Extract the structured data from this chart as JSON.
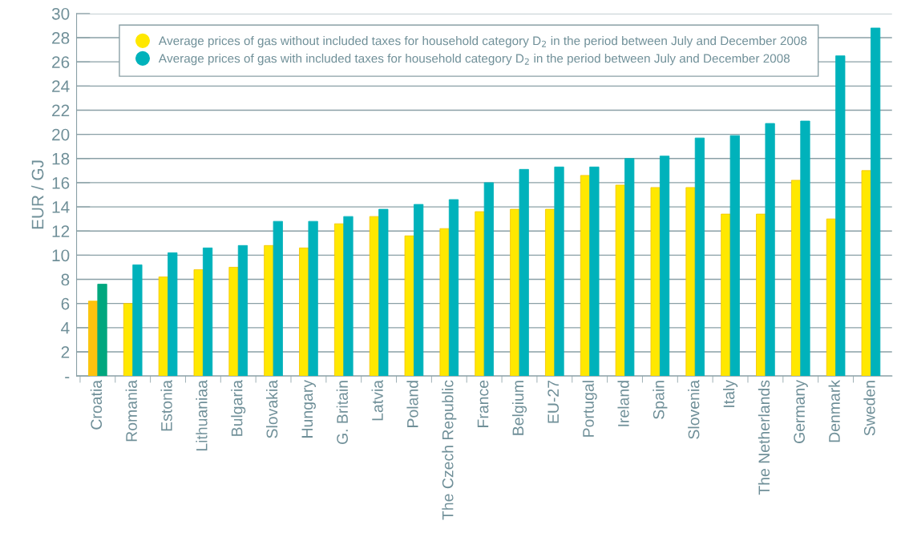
{
  "chart_data": {
    "type": "bar",
    "ylabel": "EUR / GJ",
    "categories": [
      "Croatia",
      "Romania",
      "Estonia",
      "Lithuaniaa",
      "Bulgaria",
      "Slovakia",
      "Hungary",
      "G. Britain",
      "Latvia",
      "Poland",
      "The Czech Republic",
      "France",
      "Belgium",
      "EU-27",
      "Portugal",
      "Ireland",
      "Spain",
      "Slovenia",
      "Italy",
      "The Netherlands",
      "Germany",
      "Denmark",
      "Sweden"
    ],
    "series": [
      {
        "name": "Average prices of gas without included taxes for household category D$_{2}$ in the period between July and December 2008",
        "color": "#ffe800",
        "colors": [
          "#ffc20e",
          "#ffe800",
          "#ffe800",
          "#ffe800",
          "#ffe800",
          "#ffe800",
          "#ffe800",
          "#ffe800",
          "#ffe800",
          "#ffe800",
          "#ffe800",
          "#ffe800",
          "#ffe800",
          "#ffe800",
          "#ffe800",
          "#ffe800",
          "#ffe800",
          "#ffe800",
          "#ffe800",
          "#ffe800",
          "#ffe800",
          "#ffe800",
          "#ffe800"
        ],
        "values": [
          6.2,
          6.0,
          8.2,
          8.8,
          9.0,
          10.8,
          10.6,
          12.6,
          13.2,
          11.6,
          12.2,
          13.6,
          13.8,
          13.8,
          16.6,
          15.8,
          15.6,
          15.6,
          13.4,
          13.4,
          16.2,
          13.0,
          17.0
        ]
      },
      {
        "name": "Average prices of gas with included taxes for household category D$_{2}$ in the period between July and December 2008",
        "color": "#00b2bb",
        "colors": [
          "#00a77e",
          "#00b2bb",
          "#00b2bb",
          "#00b2bb",
          "#00b2bb",
          "#00b2bb",
          "#00b2bb",
          "#00b2bb",
          "#00b2bb",
          "#00b2bb",
          "#00b2bb",
          "#00b2bb",
          "#00b2bb",
          "#00b2bb",
          "#00b2bb",
          "#00b2bb",
          "#00b2bb",
          "#00b2bb",
          "#00b2bb",
          "#00b2bb",
          "#00b2bb",
          "#00b2bb",
          "#00b2bb"
        ],
        "values": [
          7.6,
          9.2,
          10.2,
          10.6,
          10.8,
          12.8,
          12.8,
          13.2,
          13.8,
          14.2,
          14.6,
          16.0,
          17.1,
          17.3,
          17.3,
          18.0,
          18.2,
          19.7,
          19.9,
          20.9,
          21.1,
          26.5,
          28.8
        ]
      }
    ],
    "ylim": [
      0,
      30
    ],
    "yticks": [
      {
        "value": 0,
        "label": "-"
      },
      2,
      4,
      6,
      8,
      10,
      12,
      14,
      16,
      18,
      20,
      22,
      24,
      26,
      28,
      30
    ],
    "grid": "y",
    "legend": "top"
  }
}
